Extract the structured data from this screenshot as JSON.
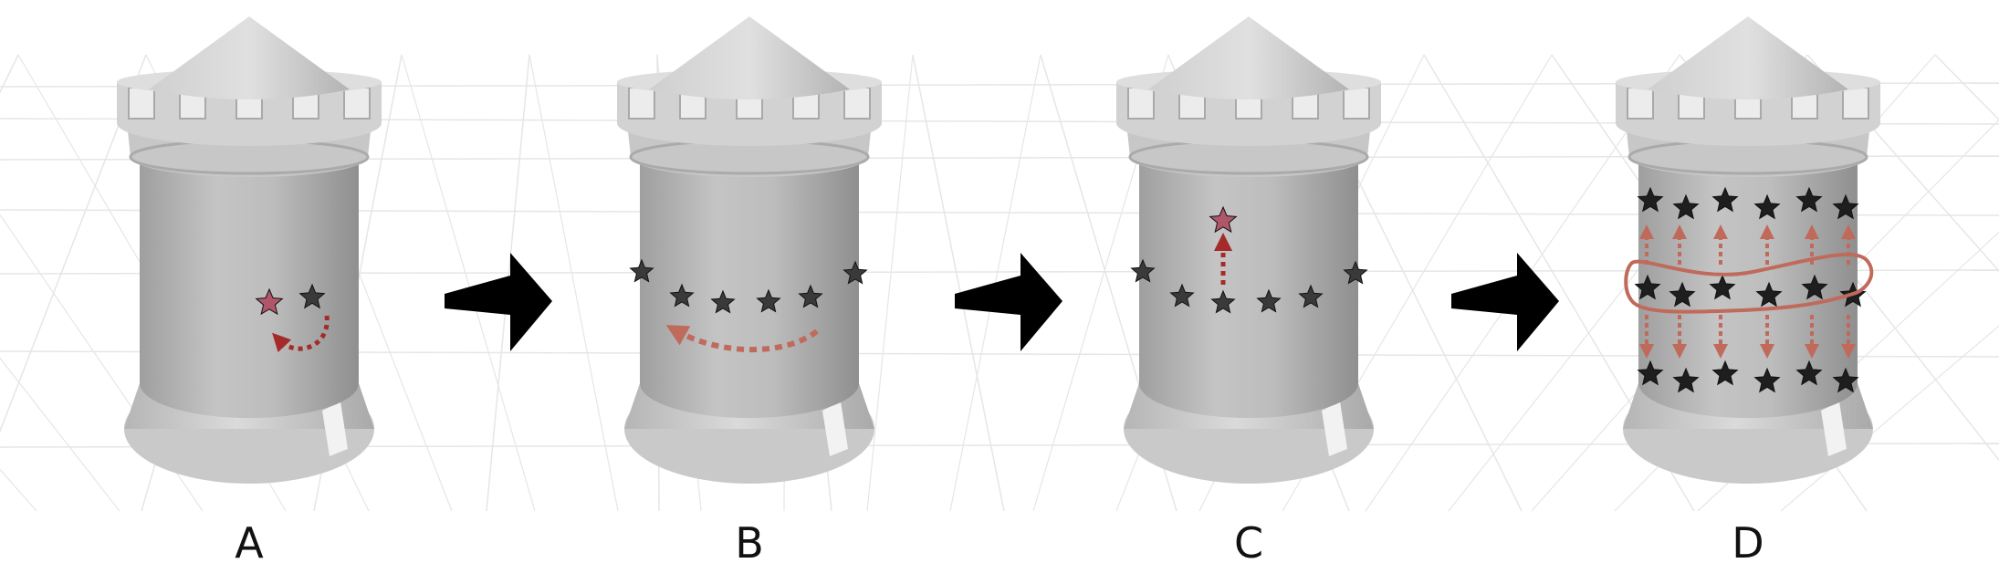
{
  "panels": [
    {
      "label": "A"
    },
    {
      "label": "B"
    },
    {
      "label": "C"
    },
    {
      "label": "D"
    }
  ],
  "colors": {
    "tower_light": "#d6d6d6",
    "tower_mid": "#b9b9b9",
    "tower_dark": "#9c9c9c",
    "grid": "#e6e6e6",
    "star_dark": "#1e1e1e",
    "star_highlight": "#b0566a",
    "arrow_red": "#a52a2a",
    "arrow_soft": "#c06a5c",
    "step_arrow": "#000000"
  }
}
